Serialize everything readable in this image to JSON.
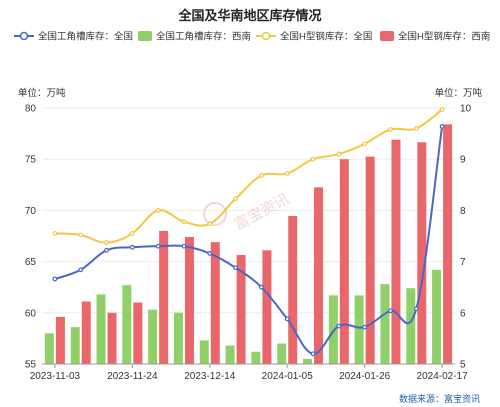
{
  "chart_data": {
    "type": "bar-line-combo",
    "title": "全国及华南地区库存情况",
    "legend": [
      {
        "name": "全国工角槽库存：全国",
        "kind": "line",
        "color": "#4a67c7"
      },
      {
        "name": "全国工角槽库存：西南",
        "kind": "bar",
        "color": "#8fd068"
      },
      {
        "name": "全国H型钢库存：全国",
        "kind": "line",
        "color": "#f2c744"
      },
      {
        "name": "全国H型钢库存：西南",
        "kind": "bar",
        "color": "#e9666a"
      }
    ],
    "left_unit": "单位：万吨",
    "right_unit": "单位：万吨",
    "yleft": {
      "min": 55,
      "max": 80,
      "ticks": [
        "55",
        "60",
        "65",
        "70",
        "75",
        "80"
      ]
    },
    "yright": {
      "min": 5,
      "max": 10,
      "ticks": [
        "5",
        "6",
        "7",
        "8",
        "9",
        "10"
      ]
    },
    "x_tick_labels": [
      "2023-11-03",
      "2023-11-24",
      "2023-12-14",
      "2024-01-05",
      "2024-01-26",
      "2024-02-17"
    ],
    "x_tick_positions": [
      0,
      3,
      6,
      9,
      12,
      15
    ],
    "num_points": 16,
    "series": [
      {
        "name": "全国工角槽库存：西南",
        "type": "bar",
        "axis": "left",
        "color": "#8fd068",
        "values": [
          58.0,
          58.6,
          61.8,
          62.7,
          60.3,
          60.0,
          57.3,
          56.8,
          56.2,
          57.0,
          55.5,
          61.7,
          61.7,
          62.8,
          62.4,
          64.2
        ]
      },
      {
        "name": "全国H型钢库存：西南",
        "type": "bar",
        "axis": "right",
        "color": "#e9666a",
        "values": [
          5.92,
          6.22,
          6.0,
          6.2,
          7.6,
          7.48,
          7.38,
          7.13,
          7.22,
          7.89,
          8.45,
          9.0,
          9.05,
          9.38,
          9.33,
          9.68
        ]
      },
      {
        "name": "全国工角槽库存：全国",
        "type": "line",
        "axis": "left",
        "color": "#4a67c7",
        "values": [
          63.3,
          64.2,
          66.1,
          66.4,
          66.5,
          66.5,
          65.8,
          64.4,
          62.5,
          59.4,
          56.0,
          58.7,
          58.6,
          60.2,
          60.4,
          78.2
        ]
      },
      {
        "name": "全国H型钢库存：全国",
        "type": "line",
        "axis": "right",
        "color": "#f2c744",
        "values": [
          7.55,
          7.52,
          7.37,
          7.55,
          8.0,
          7.78,
          7.74,
          8.23,
          8.68,
          8.72,
          9.0,
          9.1,
          9.3,
          9.58,
          9.6,
          9.97
        ]
      }
    ],
    "grid": true,
    "legend_position": "top"
  },
  "watermark": "富宝资讯",
  "source": "数据来源：富宝资讯"
}
